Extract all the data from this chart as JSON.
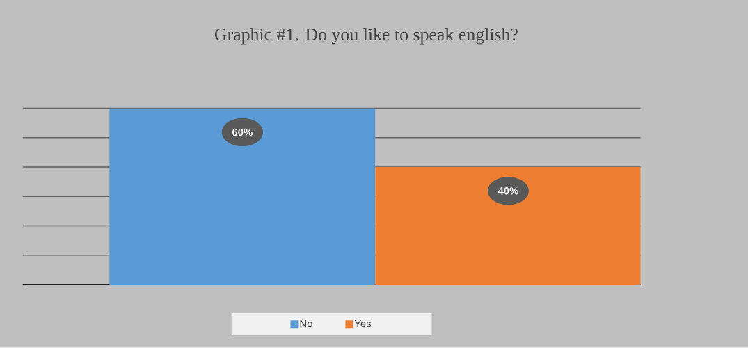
{
  "chart_data": {
    "type": "bar",
    "title": "Graphic #1. Do you like to speak english?",
    "categories": [
      null
    ],
    "series": [
      {
        "name": "No",
        "color": "#5b9bd5",
        "values": [
          60
        ],
        "value_labels": [
          "60%"
        ]
      },
      {
        "name": "Yes",
        "color": "#ed7d31",
        "values": [
          40
        ],
        "value_labels": [
          "40%"
        ]
      }
    ],
    "ylim": [
      0,
      60
    ],
    "grid": "y",
    "legend": "bottom",
    "tick_labels": false
  }
}
